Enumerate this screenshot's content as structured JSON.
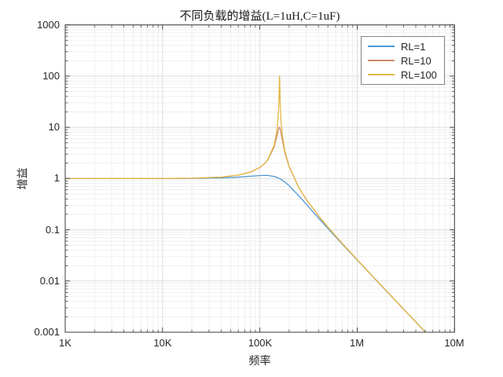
{
  "title": "不同负载的增益(L=1uH,C=1uF)",
  "colors": {
    "grid_major": "#dcdcdc",
    "grid_minor": "#efefef",
    "axis": "#4a4a4a",
    "text": "#262626",
    "legend_border": "#848484",
    "background": "#ffffff"
  },
  "chart_data": {
    "type": "line",
    "title": "不同负载的增益(L=1uH,C=1uF)",
    "xlabel": "频率",
    "ylabel": "增益",
    "x_scale": "log",
    "y_scale": "log",
    "xlim": [
      1000,
      10000000
    ],
    "ylim": [
      0.001,
      1000
    ],
    "grid": "major+minor",
    "legend_position": "top-right",
    "x_ticks": {
      "values": [
        1000,
        10000,
        100000,
        1000000,
        10000000
      ],
      "labels": [
        "1K",
        "10K",
        "100K",
        "1M",
        "10M"
      ]
    },
    "y_ticks": {
      "values": [
        1000,
        100,
        10,
        1,
        0.1,
        0.01,
        0.001
      ],
      "labels": [
        "1000",
        "100",
        "10",
        "1",
        "0.1",
        "0.01",
        "0.001"
      ]
    },
    "series": [
      {
        "name": "RL=1",
        "color": "#4f98d3",
        "points": [
          [
            1000,
            1.0
          ],
          [
            2000,
            1.0001
          ],
          [
            5000,
            1.0005
          ],
          [
            10000,
            1.002
          ],
          [
            20000,
            1.0079
          ],
          [
            40000,
            1.031
          ],
          [
            60000,
            1.0672
          ],
          [
            80000,
            1.1103
          ],
          [
            100000,
            1.1463
          ],
          [
            112500,
            1.1547
          ],
          [
            120000,
            1.1511
          ],
          [
            140000,
            1.101
          ],
          [
            150000,
            1.0536
          ],
          [
            155000,
            1.0254
          ],
          [
            158000,
            1.0072
          ],
          [
            159155,
            1.0
          ],
          [
            162000,
            0.9818
          ],
          [
            165000,
            0.9621
          ],
          [
            170000,
            0.9282
          ],
          [
            180000,
            0.8584
          ],
          [
            200000,
            0.7227
          ],
          [
            250000,
            0.4652
          ],
          [
            300000,
            0.3151
          ],
          [
            400000,
            0.17
          ],
          [
            500000,
            0.1063
          ],
          [
            700000,
            0.053
          ],
          [
            1000000,
            0.02565
          ],
          [
            1500000,
            0.01132
          ],
          [
            2000000,
            0.006353
          ],
          [
            3000000,
            0.002819
          ],
          [
            4000000,
            0.001584
          ],
          [
            5033000,
            0.001
          ]
        ]
      },
      {
        "name": "RL=10",
        "color": "#d28a66",
        "points": [
          [
            1000,
            1.0
          ],
          [
            2000,
            1.0002
          ],
          [
            5000,
            1.001
          ],
          [
            10000,
            1.0039
          ],
          [
            20000,
            1.016
          ],
          [
            40000,
            1.067
          ],
          [
            60000,
            1.1646
          ],
          [
            80000,
            1.3351
          ],
          [
            100000,
            1.6435
          ],
          [
            112500,
            1.9803
          ],
          [
            120000,
            2.2829
          ],
          [
            140000,
            4.1199
          ],
          [
            150000,
            6.8411
          ],
          [
            155000,
            9.0756
          ],
          [
            156500,
            9.6394
          ],
          [
            157500,
            9.8916
          ],
          [
            158000,
            9.968
          ],
          [
            158757,
            10.0125
          ],
          [
            159155,
            10.0
          ],
          [
            159800,
            9.9273
          ],
          [
            160000,
            9.8916
          ],
          [
            162000,
            9.2604
          ],
          [
            165000,
            7.8222
          ],
          [
            170000,
            5.6554
          ],
          [
            180000,
            3.3207
          ],
          [
            200000,
            1.6875
          ],
          [
            250000,
            0.6776
          ],
          [
            300000,
            0.3906
          ],
          [
            400000,
            0.1879
          ],
          [
            500000,
            0.1127
          ],
          [
            700000,
            0.0545
          ],
          [
            1000000,
            0.025985
          ],
          [
            1500000,
            0.011386
          ],
          [
            2000000,
            0.0063729
          ],
          [
            3000000,
            0.0028226
          ],
          [
            4000000,
            0.0015856
          ],
          [
            5033000,
            0.001001
          ]
        ]
      },
      {
        "name": "RL=100",
        "color": "#e2b746",
        "points": [
          [
            1000,
            1.0
          ],
          [
            2000,
            1.0002
          ],
          [
            5000,
            1.001
          ],
          [
            10000,
            1.004
          ],
          [
            20000,
            1.016
          ],
          [
            40000,
            1.0674
          ],
          [
            60000,
            1.1657
          ],
          [
            80000,
            1.3381
          ],
          [
            100000,
            1.6522
          ],
          [
            112500,
            1.9998
          ],
          [
            120000,
            2.3172
          ],
          [
            140000,
            4.417
          ],
          [
            150000,
            8.9178
          ],
          [
            155000,
            19.07
          ],
          [
            156500,
            28.98
          ],
          [
            157500,
            43.62
          ],
          [
            158000,
            57.03
          ],
          [
            158600,
            82.26
          ],
          [
            159155,
            100.0
          ],
          [
            159800,
            77.45
          ],
          [
            160000,
            68.29
          ],
          [
            162000,
            26.68
          ],
          [
            165000,
            13.24
          ],
          [
            170000,
            7.0758
          ],
          [
            180000,
            3.58
          ],
          [
            200000,
            1.7263
          ],
          [
            250000,
            0.6815
          ],
          [
            300000,
            0.3917
          ],
          [
            400000,
            0.1881
          ],
          [
            500000,
            0.1128
          ],
          [
            700000,
            0.0545
          ],
          [
            1000000,
            0.025988
          ],
          [
            1500000,
            0.011386
          ],
          [
            2000000,
            0.006373
          ],
          [
            3000000,
            0.0028226
          ],
          [
            4000000,
            0.0015857
          ],
          [
            5033000,
            0.001001
          ]
        ]
      }
    ]
  },
  "legend": {
    "items": [
      "RL=1",
      "RL=10",
      "RL=100"
    ]
  }
}
